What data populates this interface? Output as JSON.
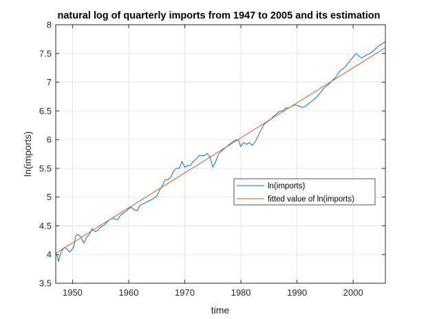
{
  "chart_data": {
    "type": "line",
    "title": "natural log of quarterly imports from 1947 to 2005 and its estimation",
    "xlabel": "time",
    "ylabel": "ln(imports)",
    "xlim": [
      1947,
      2005.75
    ],
    "ylim": [
      3.5,
      8
    ],
    "xticks": [
      1950,
      1960,
      1970,
      1980,
      1990,
      2000
    ],
    "xtick_labels": [
      "1950",
      "1960",
      "1970",
      "1980",
      "1990",
      "2000"
    ],
    "yticks": [
      3.5,
      4,
      4.5,
      5,
      5.5,
      6,
      6.5,
      7,
      7.5,
      8
    ],
    "ytick_labels": [
      "3.5",
      "4",
      "4.5",
      "5",
      "5.5",
      "6",
      "6.5",
      "7",
      "7.5",
      "8"
    ],
    "grid": true,
    "legend_position": "center-right",
    "series": [
      {
        "name": "ln(imports)",
        "color": "#0072BD",
        "x": [
          1947.0,
          1947.25,
          1947.5,
          1947.75,
          1948.0,
          1948.5,
          1949.0,
          1949.5,
          1950.0,
          1950.25,
          1950.5,
          1950.75,
          1951.0,
          1951.5,
          1952.0,
          1952.5,
          1953.0,
          1953.5,
          1954.0,
          1954.5,
          1955.0,
          1955.5,
          1956.0,
          1956.5,
          1957.0,
          1957.5,
          1958.0,
          1958.5,
          1959.0,
          1959.5,
          1960.0,
          1960.5,
          1961.0,
          1961.5,
          1962.0,
          1962.5,
          1963.0,
          1963.5,
          1964.0,
          1964.5,
          1965.0,
          1965.5,
          1966.0,
          1966.5,
          1967.0,
          1967.5,
          1968.0,
          1968.5,
          1969.0,
          1969.5,
          1970.0,
          1970.5,
          1971.0,
          1971.5,
          1972.0,
          1972.5,
          1973.0,
          1973.5,
          1974.0,
          1974.5,
          1975.0,
          1975.5,
          1976.0,
          1976.5,
          1977.0,
          1977.5,
          1978.0,
          1978.5,
          1979.0,
          1979.5,
          1980.0,
          1980.5,
          1981.0,
          1981.5,
          1982.0,
          1982.5,
          1983.0,
          1983.5,
          1984.0,
          1984.5,
          1985.0,
          1985.5,
          1986.0,
          1986.5,
          1987.0,
          1987.5,
          1988.0,
          1988.5,
          1989.0,
          1989.5,
          1990.0,
          1990.5,
          1991.0,
          1991.5,
          1992.0,
          1992.5,
          1993.0,
          1993.5,
          1994.0,
          1994.5,
          1995.0,
          1995.5,
          1996.0,
          1996.5,
          1997.0,
          1997.5,
          1998.0,
          1998.5,
          1999.0,
          1999.5,
          2000.0,
          2000.5,
          2001.0,
          2001.5,
          2002.0,
          2002.5,
          2003.0,
          2003.5,
          2004.0,
          2004.5,
          2005.0,
          2005.5,
          2005.75
        ],
        "y": [
          4.02,
          3.98,
          3.88,
          3.97,
          4.05,
          4.12,
          4.1,
          4.04,
          4.1,
          4.15,
          4.3,
          4.35,
          4.35,
          4.3,
          4.2,
          4.3,
          4.35,
          4.45,
          4.4,
          4.42,
          4.48,
          4.5,
          4.55,
          4.6,
          4.63,
          4.62,
          4.6,
          4.68,
          4.72,
          4.75,
          4.8,
          4.82,
          4.78,
          4.76,
          4.86,
          4.88,
          4.9,
          4.93,
          4.95,
          4.98,
          5.02,
          5.12,
          5.2,
          5.3,
          5.3,
          5.35,
          5.45,
          5.5,
          5.5,
          5.62,
          5.52,
          5.55,
          5.55,
          5.62,
          5.66,
          5.72,
          5.72,
          5.72,
          5.76,
          5.7,
          5.52,
          5.62,
          5.74,
          5.8,
          5.84,
          5.88,
          5.92,
          5.96,
          5.99,
          6.0,
          5.88,
          5.95,
          5.92,
          5.95,
          5.9,
          5.95,
          6.05,
          6.15,
          6.25,
          6.3,
          6.33,
          6.37,
          6.42,
          6.46,
          6.5,
          6.5,
          6.55,
          6.55,
          6.58,
          6.6,
          6.6,
          6.58,
          6.56,
          6.58,
          6.62,
          6.66,
          6.7,
          6.74,
          6.8,
          6.86,
          6.92,
          6.95,
          7.0,
          7.05,
          7.1,
          7.18,
          7.22,
          7.26,
          7.32,
          7.38,
          7.44,
          7.5,
          7.46,
          7.42,
          7.45,
          7.48,
          7.5,
          7.54,
          7.58,
          7.63,
          7.66,
          7.69,
          7.7
        ]
      },
      {
        "name": "fitted value of ln(imports)",
        "color": "#D95319",
        "x": [
          1947.0,
          2005.75
        ],
        "y": [
          4.02,
          7.6
        ]
      }
    ]
  }
}
